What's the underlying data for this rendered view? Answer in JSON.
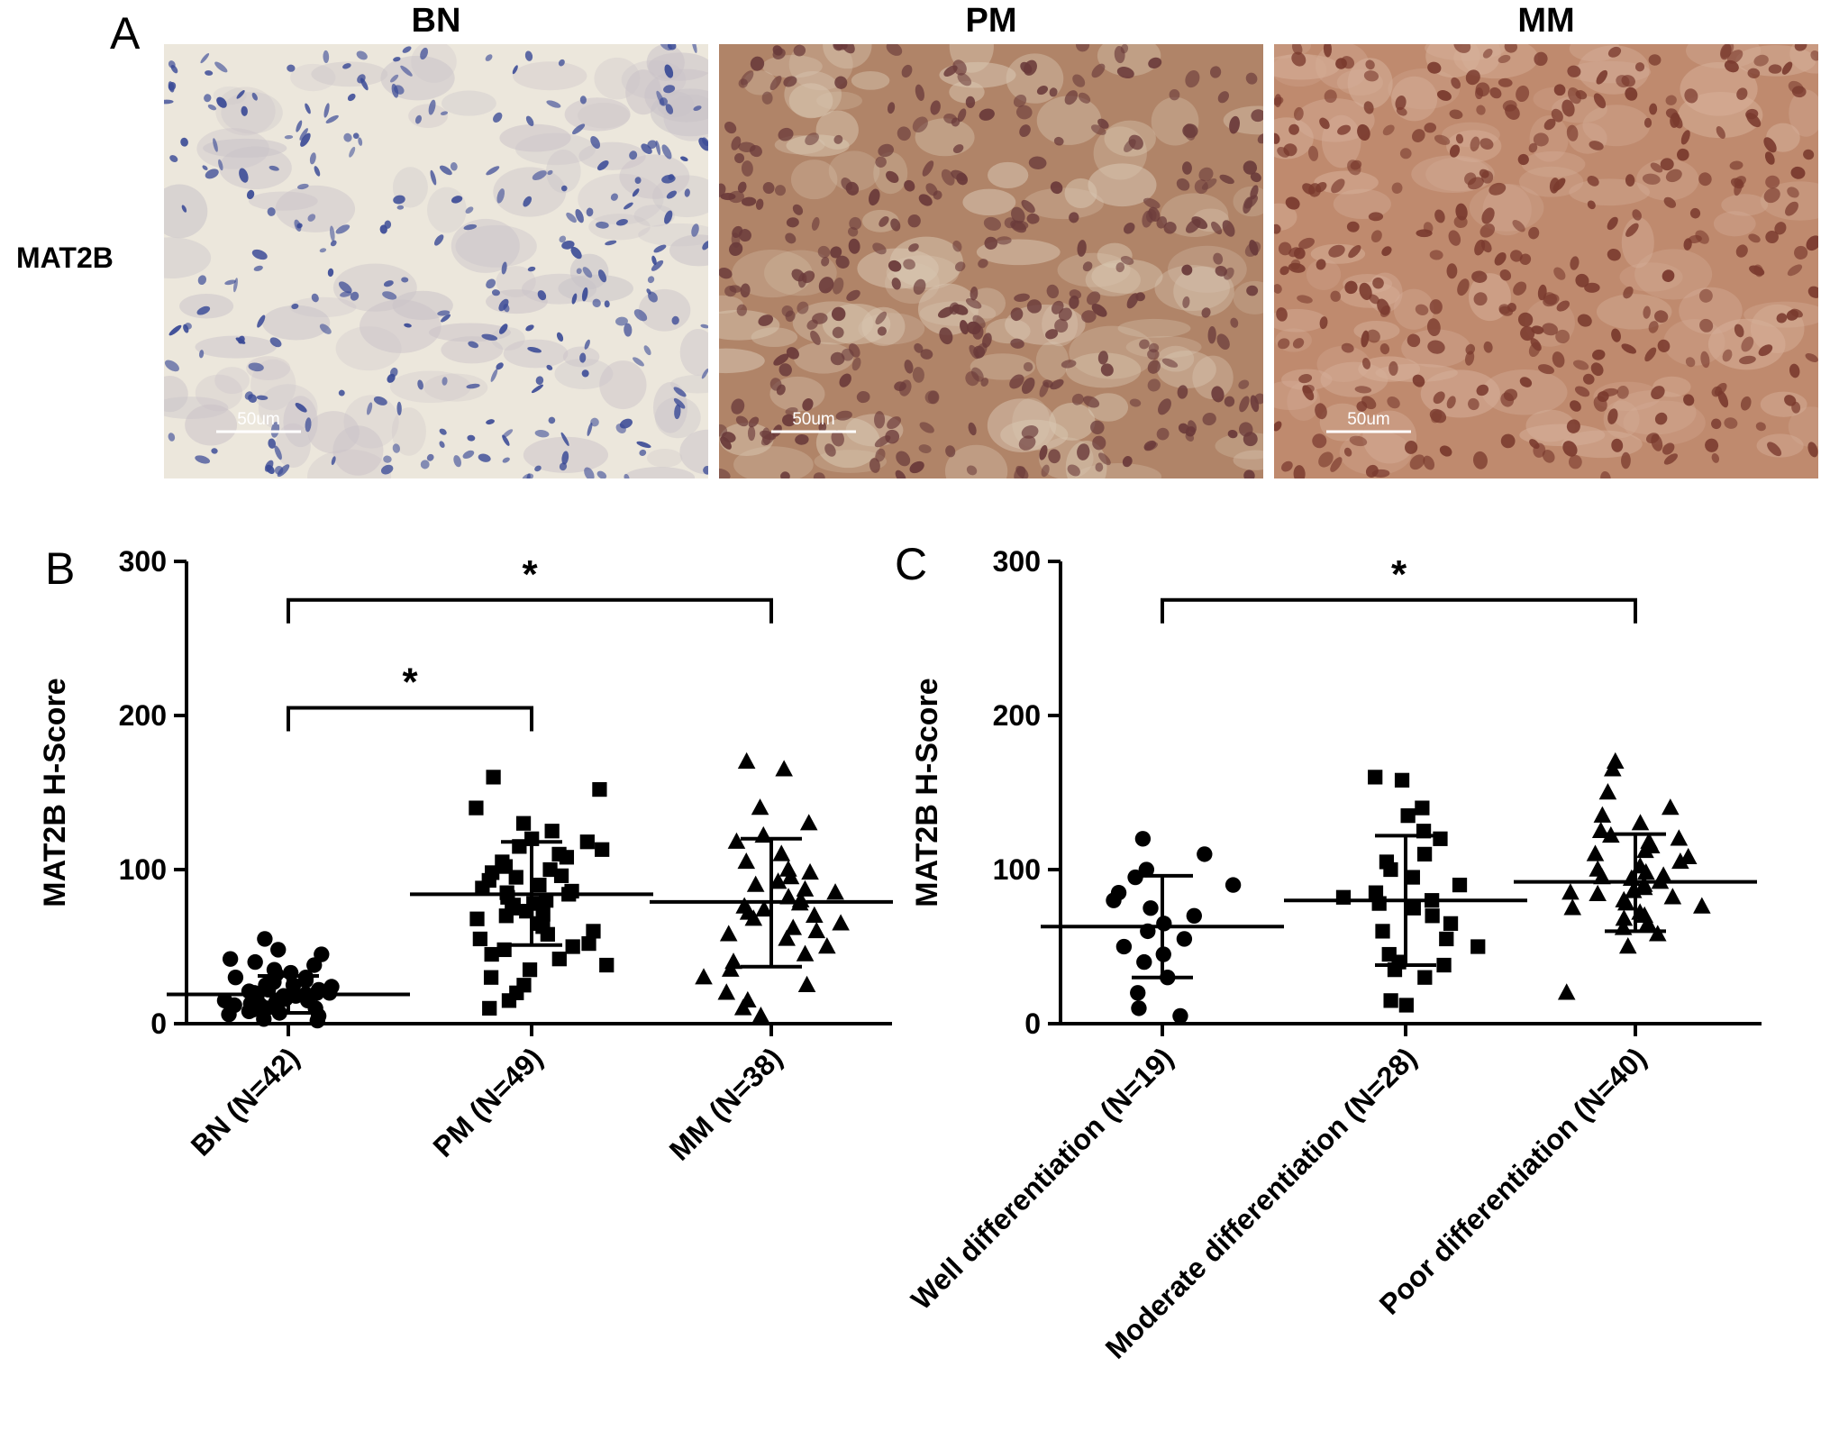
{
  "panel_a": {
    "letter": "A",
    "row_label": "MAT2B",
    "images": [
      {
        "title": "BN",
        "scale_bar": "50um",
        "stain": "weak",
        "bg": "#ece7dc",
        "nucleus_color": "#3a4a96",
        "cyto_color": "#c9c2c8"
      },
      {
        "title": "PM",
        "scale_bar": "50um",
        "stain": "moderate",
        "bg": "#b08468",
        "nucleus_color": "#6a3a3a",
        "cyto_color": "#d9c7b2"
      },
      {
        "title": "MM",
        "scale_bar": "50um",
        "stain": "strong",
        "bg": "#bf8a6e",
        "nucleus_color": "#7a3a2e",
        "cyto_color": "#d6b09a"
      }
    ]
  },
  "chart_data": [
    {
      "type": "scatter",
      "panel_letter": "B",
      "ylabel": "MAT2B H-Score",
      "ylim": [
        0,
        300
      ],
      "yticks": [
        0,
        100,
        200,
        300
      ],
      "categories": [
        "BN (N=42)",
        "PM (N=49)",
        "MM (N=38)"
      ],
      "markers": [
        "circle",
        "square",
        "triangle"
      ],
      "series": [
        {
          "mean": 19,
          "sd_low": 7,
          "sd_high": 31,
          "values": [
            55,
            48,
            45,
            42,
            40,
            38,
            35,
            33,
            32,
            30,
            30,
            28,
            27,
            25,
            25,
            24,
            22,
            22,
            21,
            20,
            20,
            20,
            19,
            18,
            18,
            17,
            16,
            15,
            15,
            14,
            13,
            12,
            12,
            10,
            10,
            9,
            8,
            7,
            6,
            5,
            3,
            2
          ]
        },
        {
          "mean": 84,
          "sd_low": 51,
          "sd_high": 118,
          "values": [
            160,
            152,
            140,
            130,
            125,
            120,
            118,
            115,
            113,
            110,
            108,
            105,
            102,
            100,
            98,
            96,
            95,
            93,
            90,
            88,
            86,
            85,
            84,
            82,
            80,
            78,
            77,
            75,
            73,
            71,
            70,
            68,
            65,
            63,
            60,
            58,
            55,
            52,
            50,
            48,
            45,
            42,
            38,
            35,
            30,
            25,
            20,
            15,
            10
          ]
        },
        {
          "mean": 79,
          "sd_low": 37,
          "sd_high": 120,
          "values": [
            170,
            165,
            140,
            130,
            122,
            118,
            110,
            105,
            100,
            98,
            95,
            92,
            90,
            87,
            85,
            82,
            80,
            78,
            76,
            74,
            72,
            70,
            68,
            65,
            62,
            60,
            58,
            55,
            50,
            45,
            40,
            35,
            30,
            25,
            20,
            15,
            10,
            5
          ]
        }
      ],
      "significance": [
        {
          "from": 0,
          "to": 2,
          "level": 275,
          "label": "*"
        },
        {
          "from": 0,
          "to": 1,
          "level": 205,
          "label": "*"
        }
      ]
    },
    {
      "type": "scatter",
      "panel_letter": "C",
      "ylabel": "MAT2B H-Score",
      "ylim": [
        0,
        300
      ],
      "yticks": [
        0,
        100,
        200,
        300
      ],
      "categories": [
        "Well differentiation (N=19)",
        "Moderate differentiation (N=28)",
        "Poor differentiation (N=40)"
      ],
      "markers": [
        "circle",
        "square",
        "triangle"
      ],
      "series": [
        {
          "mean": 63,
          "sd_low": 30,
          "sd_high": 96,
          "values": [
            120,
            110,
            100,
            95,
            90,
            85,
            80,
            75,
            70,
            65,
            60,
            55,
            50,
            45,
            40,
            30,
            20,
            10,
            5
          ]
        },
        {
          "mean": 80,
          "sd_low": 38,
          "sd_high": 122,
          "values": [
            160,
            158,
            140,
            135,
            125,
            120,
            110,
            105,
            100,
            95,
            90,
            85,
            82,
            80,
            78,
            75,
            70,
            65,
            60,
            55,
            50,
            45,
            40,
            38,
            35,
            30,
            15,
            12
          ]
        },
        {
          "mean": 92,
          "sd_low": 60,
          "sd_high": 123,
          "values": [
            170,
            165,
            150,
            140,
            135,
            130,
            125,
            122,
            120,
            118,
            115,
            112,
            110,
            108,
            105,
            102,
            100,
            98,
            96,
            95,
            94,
            92,
            90,
            88,
            86,
            85,
            84,
            82,
            80,
            78,
            76,
            75,
            72,
            70,
            68,
            65,
            62,
            58,
            50,
            20
          ]
        }
      ],
      "significance": [
        {
          "from": 0,
          "to": 2,
          "level": 275,
          "label": "*"
        }
      ]
    }
  ]
}
